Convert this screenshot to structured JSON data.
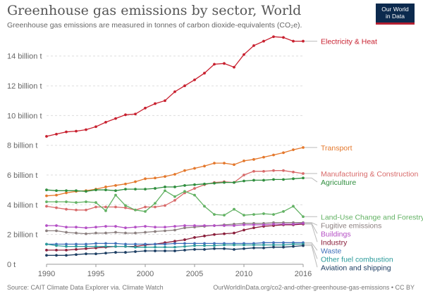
{
  "title": "Greenhouse gas emissions by sector, World",
  "subtitle": "Greenhouse gas emissions are measured in tonnes of carbon dioxide-equivalents (CO₂e).",
  "logo": {
    "line1": "Our World",
    "line2": "in Data"
  },
  "footer": {
    "source": "Source: CAIT Climate Data Explorer via. Climate Watch",
    "url": "OurWorldInData.org/co2-and-other-greenhouse-gas-emissions • CC BY"
  },
  "chart_data": {
    "type": "line",
    "x": [
      1990,
      1991,
      1992,
      1993,
      1994,
      1995,
      1996,
      1997,
      1998,
      1999,
      2000,
      2001,
      2002,
      2003,
      2004,
      2005,
      2006,
      2007,
      2008,
      2009,
      2010,
      2011,
      2012,
      2013,
      2014,
      2015,
      2016
    ],
    "xlim": [
      1990,
      2016
    ],
    "x_ticks": [
      "1990",
      "1995",
      "2000",
      "2005",
      "2010",
      "2016"
    ],
    "x_tick_values": [
      1990,
      1995,
      2000,
      2005,
      2010,
      2016
    ],
    "ylim": [
      0,
      15.5
    ],
    "y_ticks": [
      "0 t",
      "2 billion t",
      "4 billion t",
      "6 billion t",
      "8 billion t",
      "10 billion t",
      "12 billion t",
      "14 billion t"
    ],
    "y_tick_values": [
      0,
      2,
      4,
      6,
      8,
      10,
      12,
      14
    ],
    "grid": "horizontal dashed",
    "legend": "right, labels at line ends",
    "series": [
      {
        "name": "Electricity & Heat",
        "color": "#c8202f",
        "label_y": 15.0,
        "values": [
          8.6,
          8.75,
          8.9,
          8.95,
          9.05,
          9.25,
          9.55,
          9.8,
          10.05,
          10.1,
          10.5,
          10.8,
          11.0,
          11.6,
          12.0,
          12.4,
          12.85,
          13.45,
          13.5,
          13.25,
          14.1,
          14.7,
          15.0,
          15.3,
          15.25,
          15.0,
          15.0
        ]
      },
      {
        "name": "Transport",
        "color": "#e4782c",
        "label_y": 7.85,
        "values": [
          4.6,
          4.65,
          4.8,
          4.9,
          4.95,
          5.05,
          5.2,
          5.3,
          5.4,
          5.55,
          5.75,
          5.8,
          5.9,
          6.05,
          6.3,
          6.45,
          6.6,
          6.8,
          6.8,
          6.7,
          6.95,
          7.05,
          7.2,
          7.35,
          7.5,
          7.7,
          7.85
        ]
      },
      {
        "name": "Manufacturing & Construction",
        "color": "#d86a6a",
        "label_y": 6.1,
        "values": [
          3.9,
          3.8,
          3.7,
          3.65,
          3.65,
          3.85,
          3.85,
          3.85,
          3.8,
          3.65,
          3.85,
          3.85,
          3.95,
          4.3,
          4.8,
          5.1,
          5.35,
          5.5,
          5.55,
          5.5,
          6.0,
          6.25,
          6.25,
          6.3,
          6.3,
          6.2,
          6.1
        ]
      },
      {
        "name": "Agriculture",
        "color": "#2f8e3e",
        "label_y": 5.8,
        "values": [
          5.0,
          4.95,
          4.95,
          4.95,
          4.9,
          5.0,
          5.0,
          4.95,
          5.05,
          5.05,
          5.05,
          5.1,
          5.2,
          5.2,
          5.3,
          5.35,
          5.4,
          5.45,
          5.5,
          5.5,
          5.6,
          5.65,
          5.65,
          5.7,
          5.7,
          5.75,
          5.8
        ]
      },
      {
        "name": "Land-Use Change and Forestry",
        "color": "#63b264",
        "label_y": 3.2,
        "values": [
          4.2,
          4.2,
          4.2,
          4.15,
          4.2,
          4.15,
          3.6,
          4.65,
          3.95,
          3.65,
          3.55,
          4.1,
          4.95,
          4.55,
          4.9,
          4.65,
          3.9,
          3.35,
          3.3,
          3.7,
          3.3,
          3.35,
          3.4,
          3.35,
          3.55,
          3.9,
          3.2
        ]
      },
      {
        "name": "Fugitive emissions",
        "color": "#8b7f7f",
        "label_y": 2.8,
        "values": [
          2.25,
          2.25,
          2.15,
          2.1,
          2.05,
          2.1,
          2.1,
          2.15,
          2.1,
          2.1,
          2.15,
          2.2,
          2.25,
          2.3,
          2.45,
          2.5,
          2.55,
          2.6,
          2.65,
          2.7,
          2.75,
          2.75,
          2.75,
          2.8,
          2.8,
          2.8,
          2.8
        ]
      },
      {
        "name": "Industry",
        "color": "#8a1e3b",
        "label_y": 2.7,
        "values": [
          0.95,
          0.95,
          0.95,
          1.0,
          1.05,
          1.1,
          1.15,
          1.2,
          1.2,
          1.2,
          1.3,
          1.35,
          1.45,
          1.55,
          1.65,
          1.8,
          1.9,
          2.0,
          2.05,
          2.1,
          2.3,
          2.45,
          2.55,
          2.6,
          2.65,
          2.65,
          2.7
        ]
      },
      {
        "name": "Buildings",
        "color": "#b44fc5",
        "label_y": 2.75,
        "values": [
          2.6,
          2.6,
          2.5,
          2.5,
          2.45,
          2.5,
          2.55,
          2.55,
          2.45,
          2.5,
          2.55,
          2.5,
          2.5,
          2.55,
          2.6,
          2.6,
          2.6,
          2.6,
          2.6,
          2.6,
          2.65,
          2.65,
          2.65,
          2.7,
          2.7,
          2.7,
          2.75
        ]
      },
      {
        "name": "Waste",
        "color": "#3f6fba",
        "label_y": 1.45,
        "values": [
          1.35,
          1.35,
          1.35,
          1.35,
          1.35,
          1.4,
          1.4,
          1.4,
          1.35,
          1.35,
          1.35,
          1.35,
          1.35,
          1.4,
          1.4,
          1.4,
          1.4,
          1.4,
          1.4,
          1.4,
          1.4,
          1.4,
          1.45,
          1.45,
          1.45,
          1.45,
          1.45
        ]
      },
      {
        "name": "Other fuel combustion",
        "color": "#2a9a9a",
        "label_y": 1.35,
        "values": [
          1.35,
          1.25,
          1.2,
          1.2,
          1.2,
          1.2,
          1.2,
          1.2,
          1.2,
          1.15,
          1.15,
          1.15,
          1.15,
          1.15,
          1.2,
          1.25,
          1.25,
          1.25,
          1.3,
          1.3,
          1.3,
          1.3,
          1.3,
          1.3,
          1.3,
          1.35,
          1.35
        ]
      },
      {
        "name": "Aviation and shipping",
        "color": "#1d3e63",
        "label_y": 1.25,
        "values": [
          0.6,
          0.6,
          0.6,
          0.65,
          0.7,
          0.7,
          0.75,
          0.8,
          0.8,
          0.85,
          0.9,
          0.9,
          0.9,
          0.9,
          0.95,
          1.0,
          1.0,
          1.05,
          1.05,
          1.0,
          1.05,
          1.1,
          1.1,
          1.15,
          1.15,
          1.2,
          1.25
        ]
      }
    ]
  }
}
